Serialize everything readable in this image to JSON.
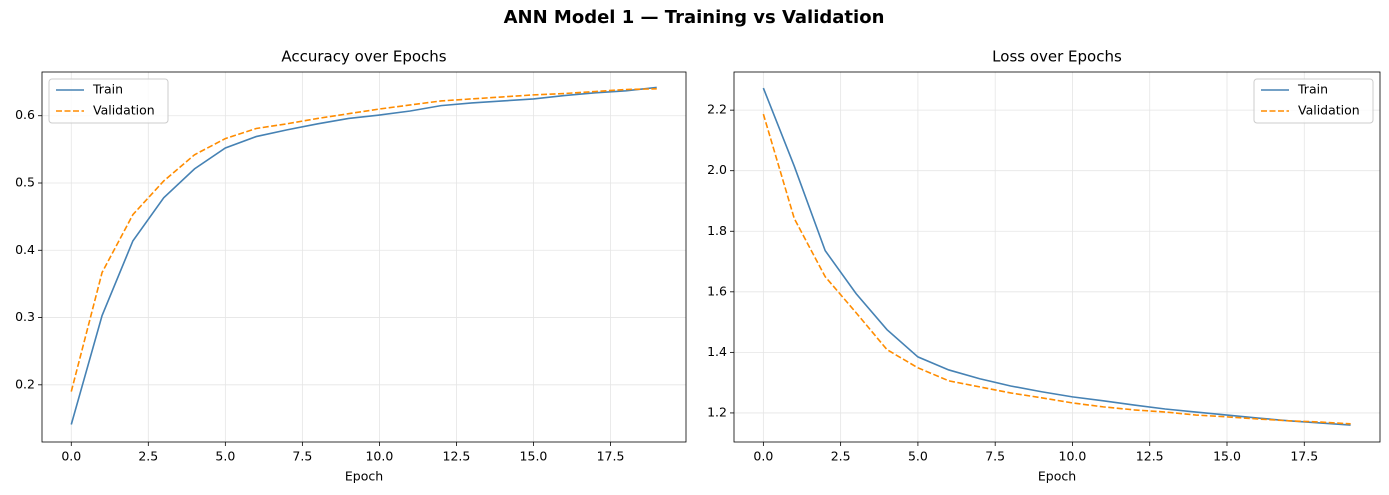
{
  "title": "ANN Model 1 — Training vs Validation",
  "chart_data": [
    {
      "type": "line",
      "title": "Accuracy over Epochs",
      "xlabel": "Epoch",
      "x": [
        0,
        1,
        2,
        3,
        4,
        5,
        6,
        7,
        8,
        9,
        10,
        11,
        12,
        13,
        14,
        15,
        16,
        17,
        18,
        19
      ],
      "series": [
        {
          "name": "Train",
          "color": "#4682b4",
          "style": "solid",
          "values": [
            0.141,
            0.303,
            0.414,
            0.478,
            0.521,
            0.552,
            0.569,
            0.579,
            0.588,
            0.596,
            0.601,
            0.607,
            0.615,
            0.619,
            0.622,
            0.625,
            0.63,
            0.634,
            0.637,
            0.642
          ]
        },
        {
          "name": "Validation",
          "color": "#ff8c00",
          "style": "dashed",
          "values": [
            0.19,
            0.367,
            0.453,
            0.503,
            0.542,
            0.566,
            0.581,
            0.588,
            0.596,
            0.603,
            0.61,
            0.616,
            0.622,
            0.625,
            0.628,
            0.631,
            0.633,
            0.636,
            0.639,
            0.64
          ]
        }
      ],
      "xlim": [
        -0.95,
        19.95
      ],
      "xticks": [
        {
          "value": 0,
          "label": "0.0"
        },
        2.5,
        {
          "value": 5,
          "label": "5.0"
        },
        7.5,
        {
          "value": 10,
          "label": "10.0"
        },
        12.5,
        {
          "value": 15,
          "label": "15.0"
        },
        17.5
      ],
      "ylim": [
        0.115,
        0.665
      ],
      "yticks": [
        0.2,
        0.3,
        0.4,
        0.5,
        0.6
      ],
      "grid": true,
      "legend": "upper left"
    },
    {
      "type": "line",
      "title": "Loss over Epochs",
      "xlabel": "Epoch",
      "x": [
        0,
        1,
        2,
        3,
        4,
        5,
        6,
        7,
        8,
        9,
        10,
        11,
        12,
        13,
        14,
        15,
        16,
        17,
        18,
        19
      ],
      "series": [
        {
          "name": "Train",
          "color": "#4682b4",
          "style": "solid",
          "values": [
            2.273,
            2.015,
            1.736,
            1.594,
            1.475,
            1.385,
            1.342,
            1.313,
            1.289,
            1.27,
            1.253,
            1.24,
            1.226,
            1.213,
            1.203,
            1.193,
            1.183,
            1.174,
            1.167,
            1.16
          ]
        },
        {
          "name": "Validation",
          "color": "#ff8c00",
          "style": "dashed",
          "values": [
            2.187,
            1.842,
            1.65,
            1.531,
            1.409,
            1.349,
            1.306,
            1.286,
            1.266,
            1.25,
            1.233,
            1.22,
            1.21,
            1.203,
            1.193,
            1.187,
            1.18,
            1.174,
            1.17,
            1.164
          ]
        }
      ],
      "xlim": [
        -0.95,
        19.95
      ],
      "xticks": [
        {
          "value": 0,
          "label": "0.0"
        },
        2.5,
        {
          "value": 5,
          "label": "5.0"
        },
        7.5,
        {
          "value": 10,
          "label": "10.0"
        },
        12.5,
        {
          "value": 15,
          "label": "15.0"
        },
        17.5
      ],
      "ylim": [
        1.104,
        2.326
      ],
      "yticks": [
        1.2,
        1.4,
        1.6,
        1.8,
        {
          "value": 2,
          "label": "2.0"
        },
        2.2
      ],
      "grid": true,
      "legend": "upper right"
    }
  ]
}
